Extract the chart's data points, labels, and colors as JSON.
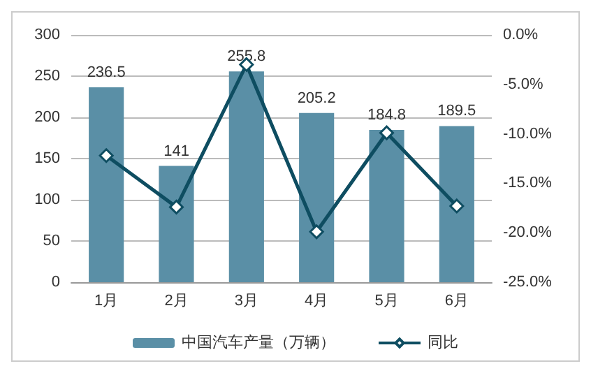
{
  "chart_data": {
    "type": "bar",
    "categories": [
      "1月",
      "2月",
      "3月",
      "4月",
      "5月",
      "6月"
    ],
    "series": [
      {
        "name": "中国汽车产量（万辆）",
        "color": "#5a8fa6",
        "values": [
          236.5,
          141,
          255.8,
          205.2,
          184.8,
          189.5
        ],
        "value_labels": [
          "236.5",
          "141",
          "255.8",
          "205.2",
          "184.8",
          "189.5"
        ]
      },
      {
        "name": "同比",
        "type": "line",
        "axis": "y2",
        "color": "#0e4d61",
        "values": [
          -12.2,
          -17.4,
          -3.0,
          -19.9,
          -9.9,
          -17.3
        ]
      }
    ],
    "ylim": [
      0,
      300
    ],
    "yticks": [
      0,
      50,
      100,
      150,
      200,
      250,
      300
    ],
    "y2lim": [
      -25,
      0
    ],
    "y2ticks": [
      {
        "value": -25,
        "label": "-25.0%"
      },
      {
        "value": -20,
        "label": "-20.0%"
      },
      {
        "value": -15,
        "label": "-15.0%"
      },
      {
        "value": -10,
        "label": "-10.0%"
      },
      {
        "value": -5,
        "label": "-5.0%"
      },
      {
        "value": 0,
        "label": "0.0%"
      }
    ],
    "grid": "y",
    "legend": "bottom",
    "marker": "diamond"
  }
}
